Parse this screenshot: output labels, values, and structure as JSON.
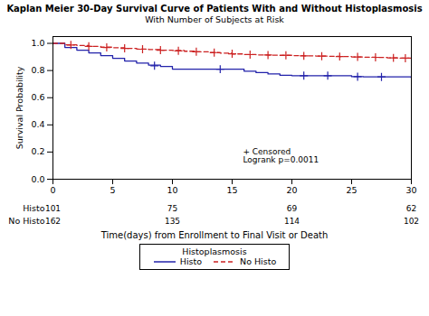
{
  "chart_data": {
    "type": "step",
    "title": "Kaplan Meier 30-Day Survival Curve of Patients With and Without Histoplasmosis",
    "subtitle": "With Number of Subjects at Risk",
    "x_label": "Time(days) from Enrollment to Final Visit or Death",
    "y_label": "Survival Probability",
    "xlim": [
      0,
      30
    ],
    "ylim": [
      0.0,
      1.05
    ],
    "xticks": [
      0,
      5,
      10,
      15,
      20,
      25,
      30
    ],
    "yticks": [
      {
        "value": 0.0,
        "label": "0.0"
      },
      0.2,
      0.4,
      0.6,
      0.8,
      {
        "value": 1.0,
        "label": "1.0"
      }
    ],
    "grid": false,
    "legend": "bottom",
    "legend_title": "Histoplasmosis",
    "annotation": "+ Censored\nLogrank p=0.0011",
    "series": [
      {
        "name": "Histo",
        "color": "#2222aa",
        "line_style": "solid",
        "marker": "plus",
        "x": [
          0,
          1,
          2,
          3,
          4,
          5,
          6,
          7,
          8,
          9,
          10,
          11,
          12,
          13,
          14,
          15,
          16,
          17,
          18,
          19,
          20,
          21,
          22,
          23,
          24,
          25,
          26,
          27,
          28,
          29,
          30
        ],
        "values": [
          1.0,
          0.97,
          0.95,
          0.93,
          0.91,
          0.89,
          0.87,
          0.855,
          0.84,
          0.83,
          0.81,
          0.81,
          0.81,
          0.81,
          0.81,
          0.81,
          0.795,
          0.785,
          0.775,
          0.765,
          0.762,
          0.762,
          0.762,
          0.762,
          0.762,
          0.755,
          0.753,
          0.753,
          0.753,
          0.753,
          0.742
        ],
        "censored_x": [
          8.5,
          14.0,
          21.0,
          23.0,
          25.5,
          27.5
        ],
        "censored_values": [
          0.835,
          0.81,
          0.762,
          0.762,
          0.755,
          0.753
        ]
      },
      {
        "name": "No Histo",
        "color": "#cc2222",
        "line_style": "dashed",
        "marker": "plus",
        "x": [
          0,
          1,
          2,
          3,
          4,
          5,
          6,
          7,
          8,
          9,
          10,
          11,
          12,
          13,
          14,
          15,
          16,
          17,
          18,
          19,
          20,
          21,
          22,
          23,
          24,
          25,
          26,
          27,
          28,
          29,
          30
        ],
        "values": [
          1.0,
          0.99,
          0.985,
          0.978,
          0.972,
          0.968,
          0.963,
          0.958,
          0.955,
          0.95,
          0.948,
          0.942,
          0.938,
          0.932,
          0.928,
          0.922,
          0.918,
          0.915,
          0.913,
          0.912,
          0.91,
          0.908,
          0.906,
          0.905,
          0.903,
          0.9,
          0.898,
          0.896,
          0.893,
          0.891,
          0.889
        ],
        "censored_x": [
          1.5,
          3.0,
          4.5,
          6.0,
          7.5,
          9.0,
          10.5,
          12.0,
          13.5,
          15.0,
          16.5,
          18.0,
          19.5,
          21.0,
          22.5,
          24.0,
          25.5,
          27.0,
          28.5,
          29.5
        ],
        "censored_values": [
          0.988,
          0.978,
          0.97,
          0.963,
          0.957,
          0.95,
          0.945,
          0.938,
          0.932,
          0.923,
          0.917,
          0.914,
          0.912,
          0.908,
          0.906,
          0.903,
          0.9,
          0.897,
          0.893,
          0.891
        ]
      }
    ],
    "risk_table": {
      "x": [
        0,
        10,
        20,
        30
      ],
      "rows": [
        {
          "name": "Histo",
          "values": [
            101,
            75,
            69,
            62
          ]
        },
        {
          "name": "No Histo",
          "values": [
            162,
            135,
            114,
            102
          ]
        }
      ]
    }
  }
}
